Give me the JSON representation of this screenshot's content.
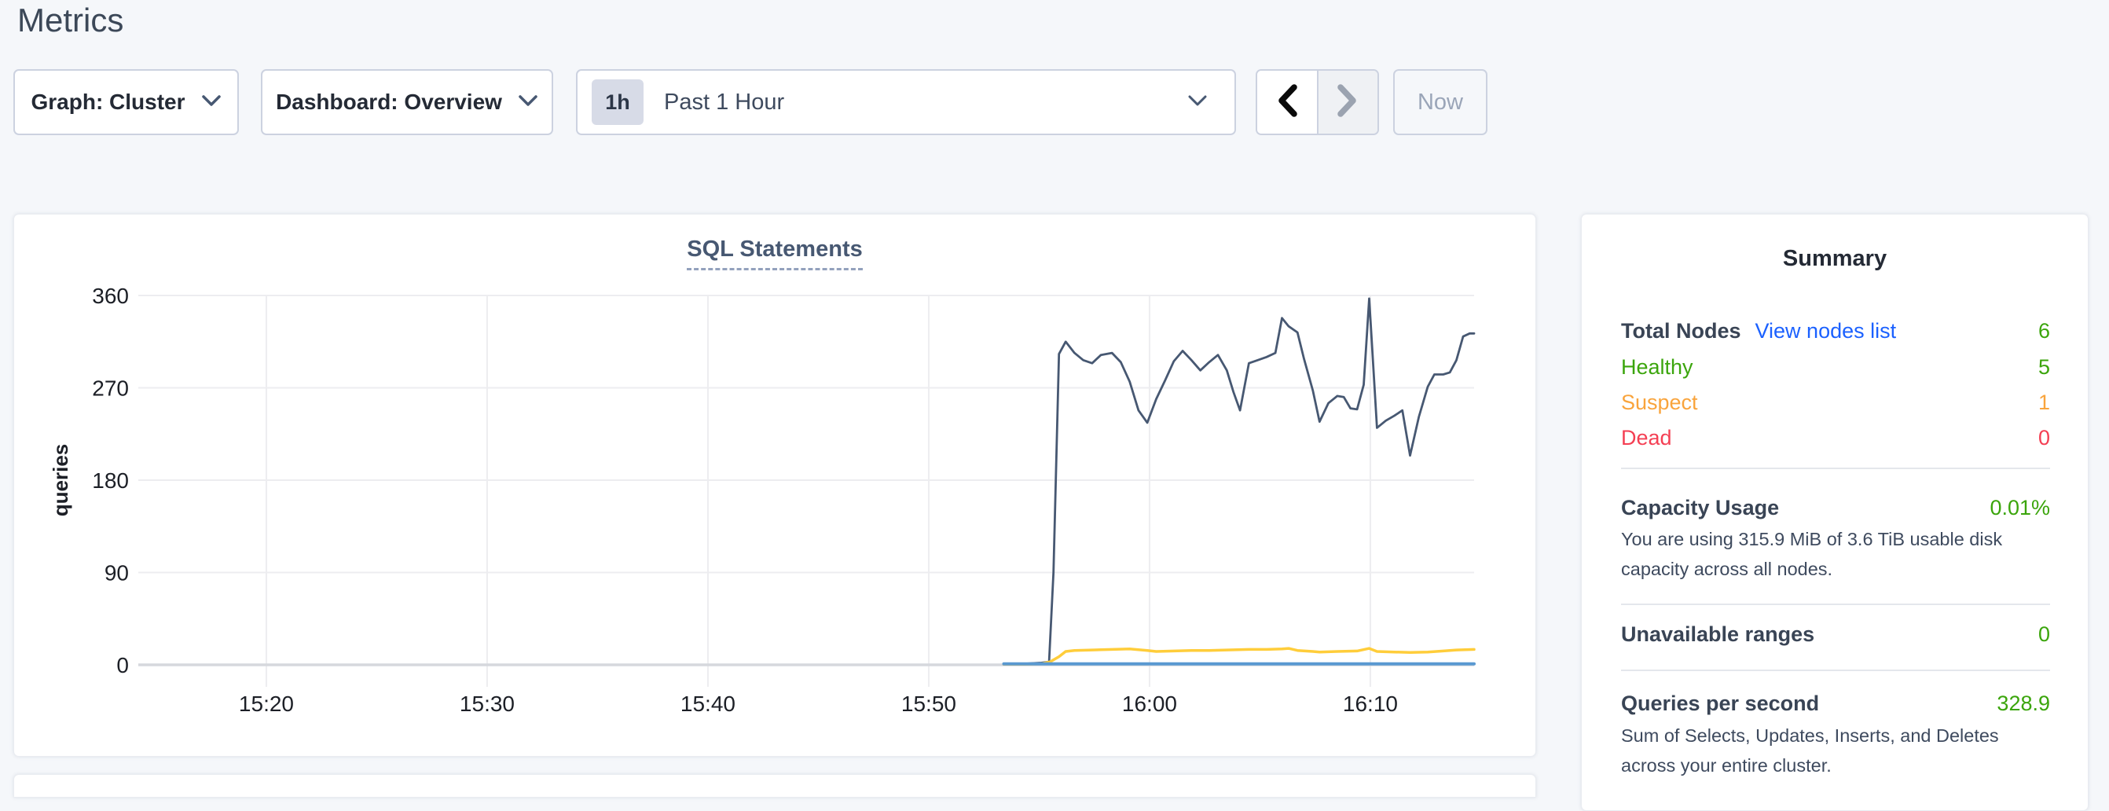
{
  "page": {
    "title": "Metrics",
    "background": "#f5f7fa"
  },
  "toolbar": {
    "graph_dropdown": {
      "label": "Graph: Cluster"
    },
    "dashboard_dropdown": {
      "label": "Dashboard: Overview"
    },
    "time_selector": {
      "badge": "1h",
      "label": "Past 1 Hour"
    },
    "now_button": {
      "label": "Now"
    }
  },
  "icons": {
    "chevron_down": "⌄",
    "chevron_left": "❮",
    "chevron_right": "❯"
  },
  "colors": {
    "link_blue": "#1b61ff",
    "green": "#3ba50c",
    "orange": "#f9a43c",
    "red": "#f43f53",
    "grid": "#ededf0",
    "zero_axis": "#d6d8dd"
  },
  "chart_data": {
    "type": "line",
    "title": "SQL Statements",
    "ylabel": "queries",
    "yticks": [
      0,
      90,
      180,
      270,
      360
    ],
    "ylim": [
      0,
      360
    ],
    "grid": true,
    "legend": "none",
    "xticks": [
      {
        "t": 20,
        "label": "15:20"
      },
      {
        "t": 30,
        "label": "15:30"
      },
      {
        "t": 40,
        "label": "15:40"
      },
      {
        "t": 50,
        "label": "15:50"
      },
      {
        "t": 60,
        "label": "16:00"
      },
      {
        "t": 70,
        "label": "16:10"
      }
    ],
    "x_domain_minutes_after_15h": [
      14.2,
      74.7
    ],
    "series": [
      {
        "name": "navy-line",
        "color": "#475872",
        "width": 2.8,
        "points": [
          [
            53.4,
            1
          ],
          [
            54.3,
            1
          ],
          [
            55.1,
            2
          ],
          [
            55.45,
            3
          ],
          [
            55.65,
            90
          ],
          [
            55.9,
            303
          ],
          [
            56.2,
            315
          ],
          [
            56.6,
            304
          ],
          [
            57.0,
            297
          ],
          [
            57.4,
            294
          ],
          [
            57.8,
            302
          ],
          [
            58.3,
            304
          ],
          [
            58.7,
            295
          ],
          [
            59.1,
            276
          ],
          [
            59.5,
            248
          ],
          [
            59.9,
            236
          ],
          [
            60.3,
            259
          ],
          [
            60.7,
            277
          ],
          [
            61.1,
            296
          ],
          [
            61.5,
            306
          ],
          [
            61.9,
            297
          ],
          [
            62.3,
            287
          ],
          [
            62.7,
            295
          ],
          [
            63.1,
            302
          ],
          [
            63.5,
            287
          ],
          [
            63.8,
            266
          ],
          [
            64.1,
            248
          ],
          [
            64.5,
            294
          ],
          [
            64.9,
            297
          ],
          [
            65.3,
            300
          ],
          [
            65.7,
            304
          ],
          [
            66.0,
            338
          ],
          [
            66.3,
            330
          ],
          [
            66.7,
            324
          ],
          [
            67.0,
            298
          ],
          [
            67.4,
            267
          ],
          [
            67.7,
            237
          ],
          [
            68.1,
            255
          ],
          [
            68.5,
            262
          ],
          [
            68.8,
            261
          ],
          [
            69.1,
            250
          ],
          [
            69.4,
            249
          ],
          [
            69.7,
            273
          ],
          [
            69.95,
            357
          ],
          [
            70.3,
            231
          ],
          [
            70.7,
            238
          ],
          [
            71.1,
            243
          ],
          [
            71.45,
            248
          ],
          [
            71.8,
            204
          ],
          [
            72.2,
            242
          ],
          [
            72.6,
            271
          ],
          [
            72.9,
            283
          ],
          [
            73.3,
            283
          ],
          [
            73.6,
            285
          ],
          [
            73.9,
            297
          ],
          [
            74.2,
            320
          ],
          [
            74.5,
            323
          ],
          [
            74.7,
            323
          ]
        ]
      },
      {
        "name": "yellow-line",
        "color": "#ffcd3a",
        "width": 3.5,
        "points": [
          [
            53.4,
            0.5
          ],
          [
            54.3,
            0.5
          ],
          [
            55.1,
            1
          ],
          [
            55.5,
            3
          ],
          [
            55.9,
            8
          ],
          [
            56.2,
            13
          ],
          [
            56.6,
            14
          ],
          [
            57.4,
            14.5
          ],
          [
            58.3,
            15
          ],
          [
            59.1,
            15.5
          ],
          [
            59.9,
            14
          ],
          [
            60.3,
            13
          ],
          [
            61.1,
            13.5
          ],
          [
            61.9,
            14
          ],
          [
            62.7,
            14
          ],
          [
            63.5,
            14.5
          ],
          [
            64.5,
            15
          ],
          [
            65.3,
            15
          ],
          [
            66.0,
            15.5
          ],
          [
            66.3,
            16
          ],
          [
            66.7,
            14
          ],
          [
            67.4,
            13
          ],
          [
            67.7,
            12.5
          ],
          [
            68.5,
            13
          ],
          [
            69.4,
            13.5
          ],
          [
            69.95,
            16
          ],
          [
            70.3,
            13
          ],
          [
            71.1,
            12.5
          ],
          [
            71.8,
            12
          ],
          [
            72.6,
            12.5
          ],
          [
            73.3,
            13.5
          ],
          [
            73.9,
            14.5
          ],
          [
            74.7,
            15
          ]
        ]
      },
      {
        "name": "blue-line",
        "color": "#5a99d1",
        "width": 4,
        "points": [
          [
            53.4,
            1
          ],
          [
            74.7,
            1
          ]
        ]
      }
    ]
  },
  "summary": {
    "title": "Summary",
    "nodes": {
      "total_label": "Total Nodes",
      "view_link": "View nodes list",
      "total_value": "6",
      "healthy_label": "Healthy",
      "healthy_value": "5",
      "suspect_label": "Suspect",
      "suspect_value": "1",
      "dead_label": "Dead",
      "dead_value": "0"
    },
    "capacity": {
      "label": "Capacity Usage",
      "value": "0.01%",
      "description": "You are using 315.9 MiB of 3.6 TiB usable disk capacity across all nodes."
    },
    "unavailable": {
      "label": "Unavailable ranges",
      "value": "0"
    },
    "qps": {
      "label": "Queries per second",
      "value": "328.9",
      "description": "Sum of Selects, Updates, Inserts, and Deletes across your entire cluster."
    }
  }
}
